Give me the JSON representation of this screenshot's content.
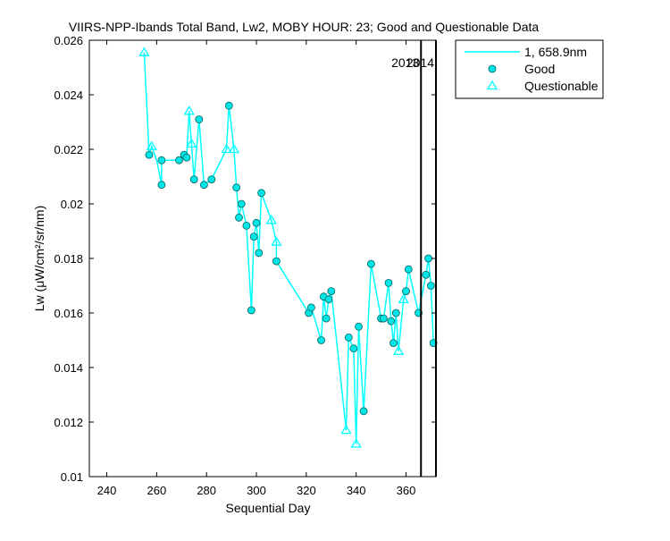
{
  "chart_data": {
    "type": "scatter",
    "title": "VIIRS-NPP-Ibands Total Band,  Lw2, MOBY HOUR: 23;  Good and Questionable Data",
    "xlabel": "Sequential Day",
    "ylabel": "Lw (μW/cm²/sr/nm)",
    "xlim": [
      233,
      372
    ],
    "ylim": [
      0.01,
      0.026
    ],
    "xticks": [
      240,
      260,
      280,
      300,
      320,
      340,
      360
    ],
    "yticks": [
      0.01,
      0.012,
      0.014,
      0.016,
      0.018,
      0.02,
      0.022,
      0.024,
      0.026
    ],
    "xtick_labels": [
      "240",
      "260",
      "280",
      "300",
      "320",
      "340",
      "360"
    ],
    "ytick_labels": [
      "0.01",
      "0.012",
      "0.014",
      "0.016",
      "0.018",
      "0.02",
      "0.022",
      "0.024",
      "0.026"
    ],
    "grid": false,
    "legend_position": "top-right-outside",
    "colors": {
      "series": "#00ffff",
      "marker_fill": "#00e5e5",
      "marker_edge": "#006060",
      "axes": "#000000",
      "divider": "#000000"
    },
    "series": [
      {
        "name": "1, 658.9nm",
        "kind": "line",
        "points": [
          [
            255,
            0.02555
          ],
          [
            257,
            0.0218
          ],
          [
            258,
            0.0221
          ],
          [
            260,
            0.0216
          ],
          [
            262,
            0.0207
          ],
          [
            262,
            0.0216
          ],
          [
            269,
            0.0216
          ],
          [
            271,
            0.0218
          ],
          [
            272,
            0.0217
          ],
          [
            273,
            0.0234
          ],
          [
            274,
            0.0222
          ],
          [
            275,
            0.0209
          ],
          [
            277,
            0.0231
          ],
          [
            279,
            0.0207
          ],
          [
            282,
            0.0209
          ],
          [
            288,
            0.022
          ],
          [
            289,
            0.0236
          ],
          [
            291,
            0.022
          ],
          [
            292,
            0.0206
          ],
          [
            293,
            0.0195
          ],
          [
            294,
            0.02
          ],
          [
            296,
            0.0192
          ],
          [
            298,
            0.0161
          ],
          [
            299,
            0.0188
          ],
          [
            300,
            0.0193
          ],
          [
            301,
            0.0182
          ],
          [
            302,
            0.0204
          ],
          [
            306,
            0.0194
          ],
          [
            308,
            0.0186
          ],
          [
            308,
            0.0179
          ],
          [
            321,
            0.016
          ],
          [
            322,
            0.0162
          ],
          [
            326,
            0.015
          ],
          [
            327,
            0.0166
          ],
          [
            328,
            0.0158
          ],
          [
            329,
            0.0165
          ],
          [
            330,
            0.0168
          ],
          [
            336,
            0.0117
          ],
          [
            337,
            0.0151
          ],
          [
            339,
            0.0147
          ],
          [
            340,
            0.0112
          ],
          [
            341,
            0.0155
          ],
          [
            343,
            0.0124
          ],
          [
            346,
            0.0178
          ],
          [
            350,
            0.0158
          ],
          [
            351,
            0.0158
          ],
          [
            353,
            0.0171
          ],
          [
            354,
            0.0157
          ],
          [
            355,
            0.0149
          ],
          [
            356,
            0.016
          ],
          [
            357,
            0.0146
          ],
          [
            359,
            0.0165
          ],
          [
            360,
            0.0168
          ],
          [
            361,
            0.0176
          ],
          [
            365,
            0.016
          ],
          [
            368,
            0.0174
          ],
          [
            369,
            0.018
          ],
          [
            370,
            0.017
          ],
          [
            371,
            0.0149
          ]
        ]
      },
      {
        "name": "Good",
        "kind": "circle",
        "points": [
          [
            257,
            0.0218
          ],
          [
            262,
            0.0207
          ],
          [
            262,
            0.0216
          ],
          [
            269,
            0.0216
          ],
          [
            271,
            0.0218
          ],
          [
            272,
            0.0217
          ],
          [
            275,
            0.0209
          ],
          [
            277,
            0.0231
          ],
          [
            279,
            0.0207
          ],
          [
            282,
            0.0209
          ],
          [
            289,
            0.0236
          ],
          [
            292,
            0.0206
          ],
          [
            293,
            0.0195
          ],
          [
            294,
            0.02
          ],
          [
            296,
            0.0192
          ],
          [
            298,
            0.0161
          ],
          [
            299,
            0.0188
          ],
          [
            300,
            0.0193
          ],
          [
            301,
            0.0182
          ],
          [
            302,
            0.0204
          ],
          [
            308,
            0.0179
          ],
          [
            321,
            0.016
          ],
          [
            322,
            0.0162
          ],
          [
            326,
            0.015
          ],
          [
            327,
            0.0166
          ],
          [
            328,
            0.0158
          ],
          [
            329,
            0.0165
          ],
          [
            330,
            0.0168
          ],
          [
            337,
            0.0151
          ],
          [
            339,
            0.0147
          ],
          [
            341,
            0.0155
          ],
          [
            343,
            0.0124
          ],
          [
            346,
            0.0178
          ],
          [
            350,
            0.0158
          ],
          [
            351,
            0.0158
          ],
          [
            353,
            0.0171
          ],
          [
            354,
            0.0157
          ],
          [
            355,
            0.0149
          ],
          [
            356,
            0.016
          ],
          [
            360,
            0.0168
          ],
          [
            361,
            0.0176
          ],
          [
            365,
            0.016
          ],
          [
            368,
            0.0174
          ],
          [
            369,
            0.018
          ],
          [
            370,
            0.017
          ],
          [
            371,
            0.0149
          ]
        ]
      },
      {
        "name": "Questionable",
        "kind": "triangle",
        "points": [
          [
            255,
            0.02555
          ],
          [
            258,
            0.0221
          ],
          [
            273,
            0.0234
          ],
          [
            274,
            0.0222
          ],
          [
            288,
            0.022
          ],
          [
            291,
            0.022
          ],
          [
            306,
            0.0194
          ],
          [
            308,
            0.0186
          ],
          [
            336,
            0.0117
          ],
          [
            340,
            0.0112
          ],
          [
            357,
            0.0146
          ],
          [
            359,
            0.0165
          ]
        ]
      }
    ],
    "dividers": [
      {
        "x": 366,
        "label": "2013"
      },
      {
        "x": 372,
        "label": "2014"
      }
    ]
  }
}
